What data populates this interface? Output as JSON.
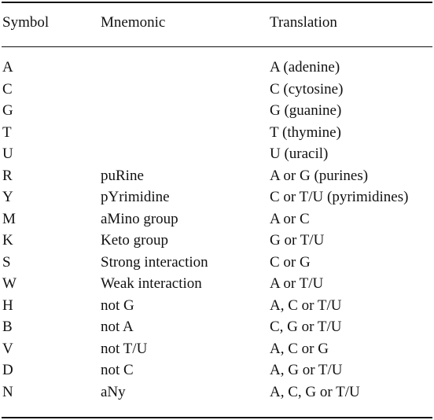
{
  "table": {
    "headers": {
      "symbol": "Symbol",
      "mnemonic": "Mnemonic",
      "translation": "Translation"
    },
    "rows": [
      {
        "symbol": "A",
        "mnemonic": "",
        "translation": "A (adenine)"
      },
      {
        "symbol": "C",
        "mnemonic": "",
        "translation": "C (cytosine)"
      },
      {
        "symbol": "G",
        "mnemonic": "",
        "translation": "G (guanine)"
      },
      {
        "symbol": "T",
        "mnemonic": "",
        "translation": "T (thymine)"
      },
      {
        "symbol": "U",
        "mnemonic": "",
        "translation": "U (uracil)"
      },
      {
        "symbol": "R",
        "mnemonic": "puRine",
        "translation": "A or G (purines)"
      },
      {
        "symbol": "Y",
        "mnemonic": "pYrimidine",
        "translation": "C or T/U (pyrimidines)"
      },
      {
        "symbol": "M",
        "mnemonic": "aMino group",
        "translation": "A or C"
      },
      {
        "symbol": "K",
        "mnemonic": "Keto group",
        "translation": "G or T/U"
      },
      {
        "symbol": "S",
        "mnemonic": "Strong interaction",
        "translation": "C or G"
      },
      {
        "symbol": "W",
        "mnemonic": "Weak interaction",
        "translation": "A or T/U"
      },
      {
        "symbol": "H",
        "mnemonic": "not G",
        "translation": "A, C or T/U"
      },
      {
        "symbol": "B",
        "mnemonic": "not A",
        "translation": "C, G or T/U"
      },
      {
        "symbol": "V",
        "mnemonic": "not T/U",
        "translation": "A, C or G"
      },
      {
        "symbol": "D",
        "mnemonic": "not C",
        "translation": "A, G or T/U"
      },
      {
        "symbol": "N",
        "mnemonic": "aNy",
        "translation": "A, C, G or T/U"
      }
    ]
  }
}
